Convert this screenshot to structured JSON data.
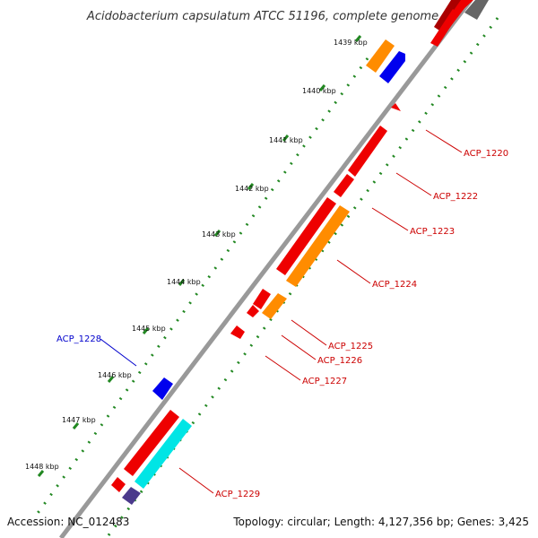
{
  "title": "Acidobacterium capsulatum ATCC 51196, complete genome",
  "footer": {
    "accession": "Accession: NC_012483",
    "summary": "Topology: circular; Length: 4,127,356 bp; Genes: 3,425"
  },
  "ticks": [
    "1439 kbp",
    "1440 kbp",
    "1441 kbp",
    "1442 kbp",
    "1443 kbp",
    "1444 kbp",
    "1445 kbp",
    "1446 kbp",
    "1447 kbp",
    "1448 kbp"
  ],
  "gene_labels": [
    {
      "name": "ACP_1220",
      "color": "#cc0000"
    },
    {
      "name": "ACP_1222",
      "color": "#cc0000"
    },
    {
      "name": "ACP_1223",
      "color": "#cc0000"
    },
    {
      "name": "ACP_1224",
      "color": "#cc0000"
    },
    {
      "name": "ACP_1225",
      "color": "#cc0000"
    },
    {
      "name": "ACP_1226",
      "color": "#cc0000"
    },
    {
      "name": "ACP_1227",
      "color": "#cc0000"
    },
    {
      "name": "ACP_1228",
      "color": "#0000cc"
    },
    {
      "name": "ACP_1229",
      "color": "#cc0000"
    }
  ],
  "colors": {
    "cds_red": "#ee0000",
    "cds_orange": "#ff8c00",
    "cds_blue": "#0000ee",
    "cds_cyan": "#00e5e5",
    "cds_purple": "#4b3a8c",
    "cds_gray": "#666666",
    "backbone": "#999999",
    "gc_dots": "#228822"
  }
}
